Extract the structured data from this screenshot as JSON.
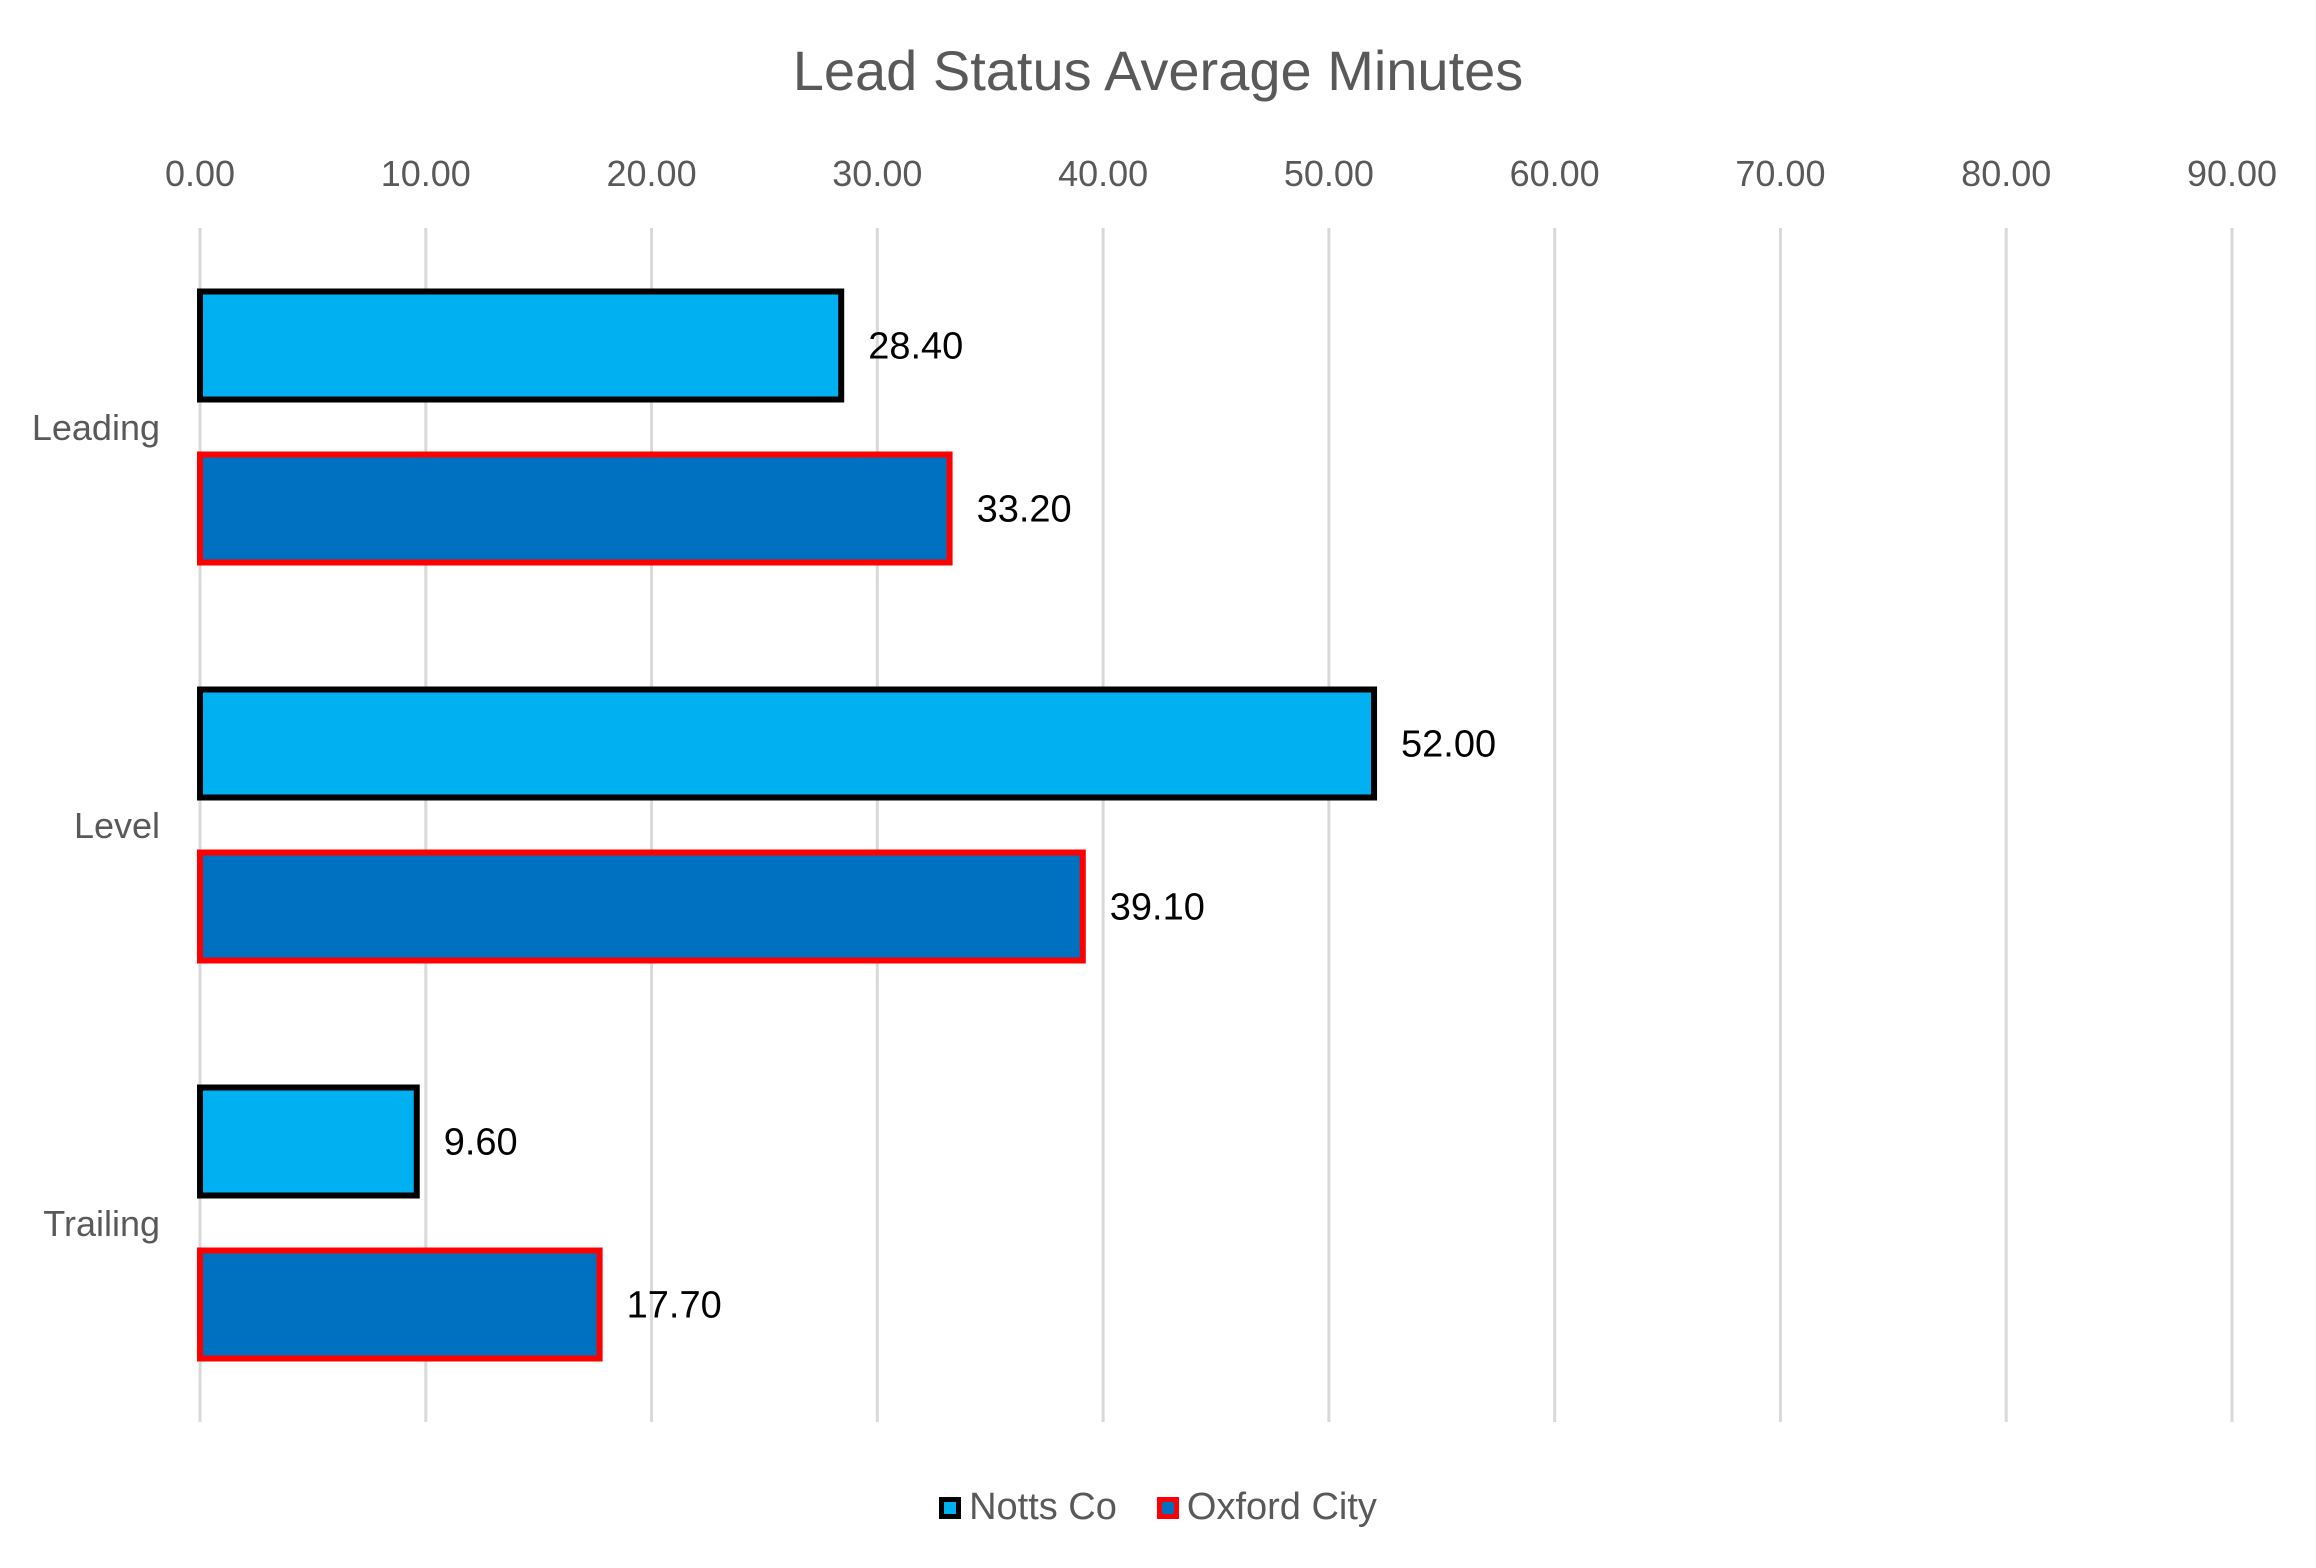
{
  "chart_data": {
    "type": "bar",
    "orientation": "horizontal",
    "title": "Lead Status Average Minutes",
    "categories": [
      "Leading",
      "Level",
      "Trailing"
    ],
    "series": [
      {
        "name": "Notts Co",
        "values": [
          28.4,
          52.0,
          9.6
        ],
        "fill": "#00b0f0",
        "stroke": "#000000"
      },
      {
        "name": "Oxford City",
        "values": [
          33.2,
          39.1,
          17.7
        ],
        "fill": "#0070c0",
        "stroke": "#ff0000"
      }
    ],
    "xlim": [
      0,
      90
    ],
    "x_ticks": [
      "0.00",
      "10.00",
      "20.00",
      "30.00",
      "40.00",
      "50.00",
      "60.00",
      "70.00",
      "80.00",
      "90.00"
    ],
    "data_labels": [
      [
        "28.40",
        "52.00",
        "9.60"
      ],
      [
        "33.20",
        "39.10",
        "17.70"
      ]
    ],
    "axis_position": "top",
    "grid": true,
    "legend_position": "bottom"
  }
}
